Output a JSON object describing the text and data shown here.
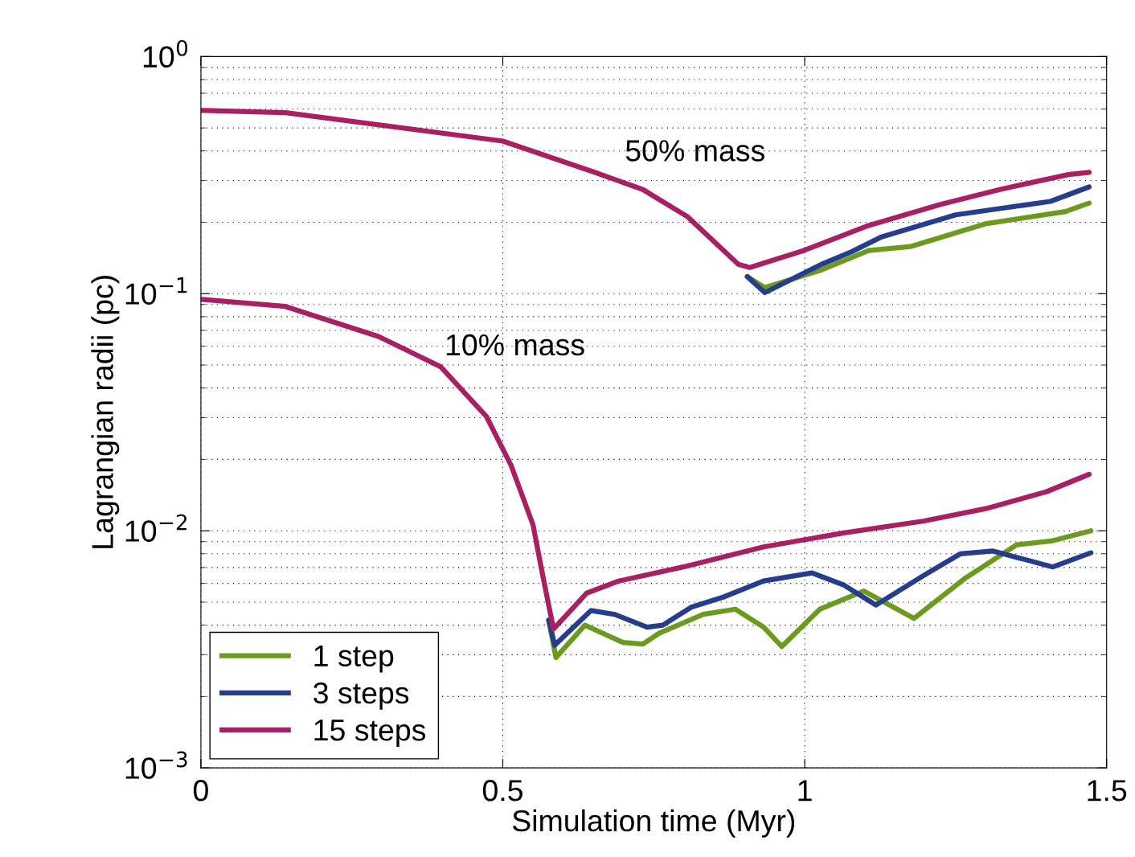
{
  "chart_data": {
    "type": "line",
    "xlabel": "Simulation time (Myr)",
    "ylabel": "Lagrangian radii (pc)",
    "log": "y",
    "grid": true,
    "legend": "bottom left",
    "line_style": "solid",
    "marker": "none",
    "xlim": [
      0,
      1.5
    ],
    "xticks": [
      0,
      0.5,
      1,
      1.5
    ],
    "ylim": [
      0.001,
      1
    ],
    "yticks": [
      {
        "value": 0.001,
        "label": "10$^{−3}$"
      },
      {
        "value": 0.01,
        "label": "10$^{−2}$"
      },
      {
        "value": 0.1,
        "label": "10$^{−1}$"
      },
      {
        "value": 1,
        "label": "10$^{0}$"
      }
    ],
    "annotations": [
      "50% mass",
      "10% mass"
    ],
    "series": [
      {
        "color": "#6b9a1e",
        "x": [
          0.905,
          0.934,
          1.028,
          1.106,
          1.175,
          1.299,
          1.432,
          1.471
        ],
        "values": [
          0.118,
          0.106,
          0.126,
          0.152,
          0.158,
          0.197,
          0.222,
          0.241
        ]
      },
      {
        "color": "#263d8e",
        "x": [
          0.905,
          0.934,
          1.028,
          1.077,
          1.126,
          1.25,
          1.407,
          1.471
        ],
        "values": [
          0.118,
          0.101,
          0.133,
          0.15,
          0.173,
          0.215,
          0.245,
          0.282
        ]
      },
      {
        "color": "#a91f64",
        "x": [
          0,
          0.14,
          0.5,
          0.652,
          0.732,
          0.806,
          0.89,
          0.909,
          0.998,
          1.106,
          1.225,
          1.323,
          1.437,
          1.471
        ],
        "values": [
          0.593,
          0.58,
          0.44,
          0.325,
          0.275,
          0.211,
          0.133,
          0.129,
          0.152,
          0.194,
          0.238,
          0.275,
          0.318,
          0.325
        ]
      },
      {
        "name": "1 step",
        "color": "#6b9a1e",
        "x": [
          0.576,
          0.588,
          0.636,
          0.699,
          0.732,
          0.759,
          0.832,
          0.885,
          0.932,
          0.962,
          1.025,
          1.098,
          1.181,
          1.264,
          1.351,
          1.411,
          1.474
        ],
        "values": [
          0.0042,
          0.00292,
          0.004,
          0.00338,
          0.00333,
          0.0037,
          0.00444,
          0.00467,
          0.00392,
          0.00325,
          0.00467,
          0.00557,
          0.00427,
          0.00626,
          0.00873,
          0.00908,
          0.01
        ]
      },
      {
        "name": "3 steps",
        "color": "#263d8e",
        "x": [
          0.576,
          0.586,
          0.646,
          0.685,
          0.739,
          0.765,
          0.812,
          0.865,
          0.932,
          1.012,
          1.065,
          1.118,
          1.198,
          1.258,
          1.311,
          1.411,
          1.474
        ],
        "values": [
          0.0042,
          0.00329,
          0.00461,
          0.00444,
          0.00392,
          0.004,
          0.00476,
          0.00525,
          0.00614,
          0.00664,
          0.0059,
          0.00486,
          0.0065,
          0.008,
          0.00822,
          0.00704,
          0.00807
        ]
      },
      {
        "name": "15 steps",
        "color": "#a91f64",
        "x": [
          0,
          0.14,
          0.294,
          0.397,
          0.473,
          0.514,
          0.55,
          0.566,
          0.584,
          0.639,
          0.692,
          0.799,
          0.932,
          1.065,
          1.198,
          1.3,
          1.4,
          1.471
        ],
        "values": [
          0.0947,
          0.0883,
          0.066,
          0.0492,
          0.0303,
          0.0188,
          0.0106,
          0.0065,
          0.00385,
          0.00546,
          0.00614,
          0.00704,
          0.00855,
          0.0098,
          0.011,
          0.0124,
          0.0146,
          0.0173
        ]
      }
    ]
  }
}
